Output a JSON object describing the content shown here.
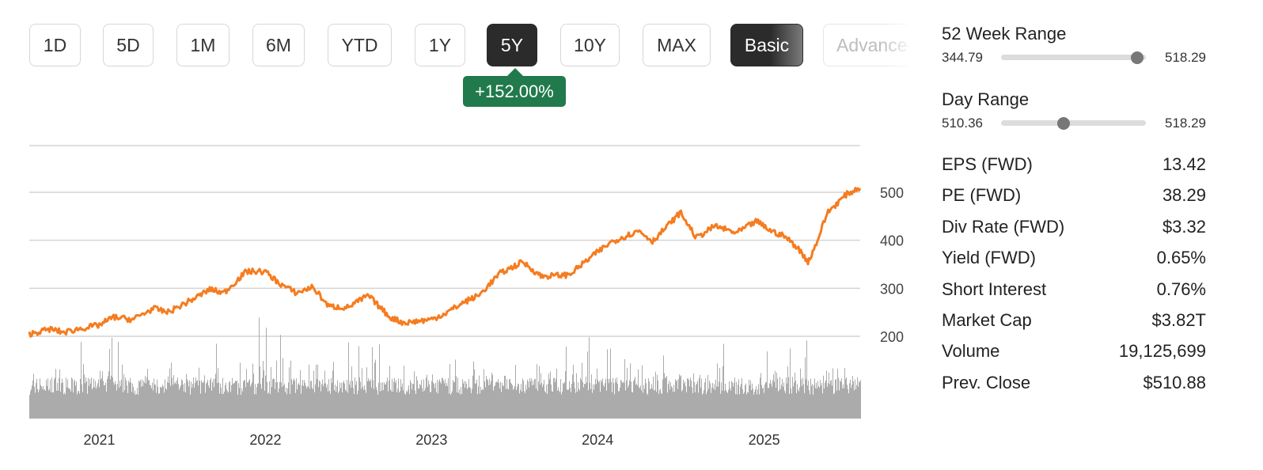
{
  "ranges": [
    "1D",
    "5D",
    "1M",
    "6M",
    "YTD",
    "1Y",
    "5Y",
    "10Y",
    "MAX"
  ],
  "active_range": "5Y",
  "modes": [
    "Basic",
    "Advanced"
  ],
  "active_mode": "Basic",
  "change_badge": "+152.00%",
  "colors": {
    "price_line": "#f57c1f",
    "volume": "#ababab",
    "badge": "#217a4b",
    "active_button": "#2b2b2b"
  },
  "week52": {
    "label": "52 Week Range",
    "low": "344.79",
    "high": "518.29",
    "position": 0.94
  },
  "day": {
    "label": "Day Range",
    "low": "510.36",
    "high": "518.29",
    "position": 0.43
  },
  "stats": [
    {
      "label": "EPS (FWD)",
      "value": "13.42"
    },
    {
      "label": "PE (FWD)",
      "value": "38.29"
    },
    {
      "label": "Div Rate (FWD)",
      "value": "$3.32"
    },
    {
      "label": "Yield (FWD)",
      "value": "0.65%"
    },
    {
      "label": "Short Interest",
      "value": "0.76%"
    },
    {
      "label": "Market Cap",
      "value": "$3.82T"
    },
    {
      "label": "Volume",
      "value": "19,125,699"
    },
    {
      "label": "Prev. Close",
      "value": "$510.88"
    }
  ],
  "chart_data": {
    "type": "line",
    "x_ticks": [
      "2021",
      "2022",
      "2023",
      "2024",
      "2025"
    ],
    "y_ticks": [
      200,
      300,
      400,
      500
    ],
    "ylim": [
      190,
      600
    ],
    "xlim": [
      "2020-07-31",
      "2025-07-31"
    ],
    "grid": true,
    "series": [
      {
        "points": [
          [
            "2020-08-01",
            205
          ],
          [
            "2020-09-15",
            215
          ],
          [
            "2020-10-15",
            208
          ],
          [
            "2020-11-15",
            215
          ],
          [
            "2020-12-31",
            223
          ],
          [
            "2021-02-01",
            240
          ],
          [
            "2021-03-15",
            235
          ],
          [
            "2021-04-30",
            258
          ],
          [
            "2021-06-01",
            250
          ],
          [
            "2021-07-31",
            280
          ],
          [
            "2021-09-01",
            298
          ],
          [
            "2021-10-01",
            290
          ],
          [
            "2021-11-20",
            335
          ],
          [
            "2021-12-31",
            335
          ],
          [
            "2022-02-01",
            310
          ],
          [
            "2022-03-10",
            290
          ],
          [
            "2022-04-15",
            303
          ],
          [
            "2022-05-20",
            262
          ],
          [
            "2022-06-30",
            260
          ],
          [
            "2022-08-15",
            285
          ],
          [
            "2022-10-01",
            240
          ],
          [
            "2022-11-01",
            228
          ],
          [
            "2022-12-31",
            235
          ],
          [
            "2023-02-01",
            248
          ],
          [
            "2023-03-15",
            272
          ],
          [
            "2023-04-15",
            285
          ],
          [
            "2023-05-30",
            330
          ],
          [
            "2023-07-20",
            355
          ],
          [
            "2023-08-30",
            325
          ],
          [
            "2023-10-30",
            328
          ],
          [
            "2023-12-31",
            375
          ],
          [
            "2024-02-01",
            397
          ],
          [
            "2024-04-01",
            420
          ],
          [
            "2024-05-01",
            398
          ],
          [
            "2024-07-01",
            458
          ],
          [
            "2024-08-05",
            405
          ],
          [
            "2024-09-15",
            430
          ],
          [
            "2024-11-01",
            415
          ],
          [
            "2024-12-15",
            440
          ],
          [
            "2025-01-15",
            420
          ],
          [
            "2025-02-15",
            408
          ],
          [
            "2025-03-15",
            385
          ],
          [
            "2025-04-08",
            355
          ],
          [
            "2025-04-25",
            392
          ],
          [
            "2025-05-20",
            458
          ],
          [
            "2025-06-30",
            495
          ],
          [
            "2025-07-31",
            510
          ]
        ]
      }
    ],
    "volume_envelope": [
      [
        "2020-08-01",
        0.45
      ],
      [
        "2021-01-28",
        0.8
      ],
      [
        "2021-06-01",
        0.4
      ],
      [
        "2021-12-01",
        0.6
      ],
      [
        "2021-12-20",
        1.0
      ],
      [
        "2022-06-01",
        0.55
      ],
      [
        "2022-10-26",
        0.75
      ],
      [
        "2022-12-01",
        0.45
      ],
      [
        "2023-06-01",
        0.5
      ],
      [
        "2023-10-25",
        0.8
      ],
      [
        "2024-01-31",
        0.9
      ],
      [
        "2024-06-01",
        0.45
      ],
      [
        "2025-01-30",
        0.7
      ],
      [
        "2025-04-10",
        0.6
      ],
      [
        "2025-07-31",
        0.35
      ]
    ]
  }
}
